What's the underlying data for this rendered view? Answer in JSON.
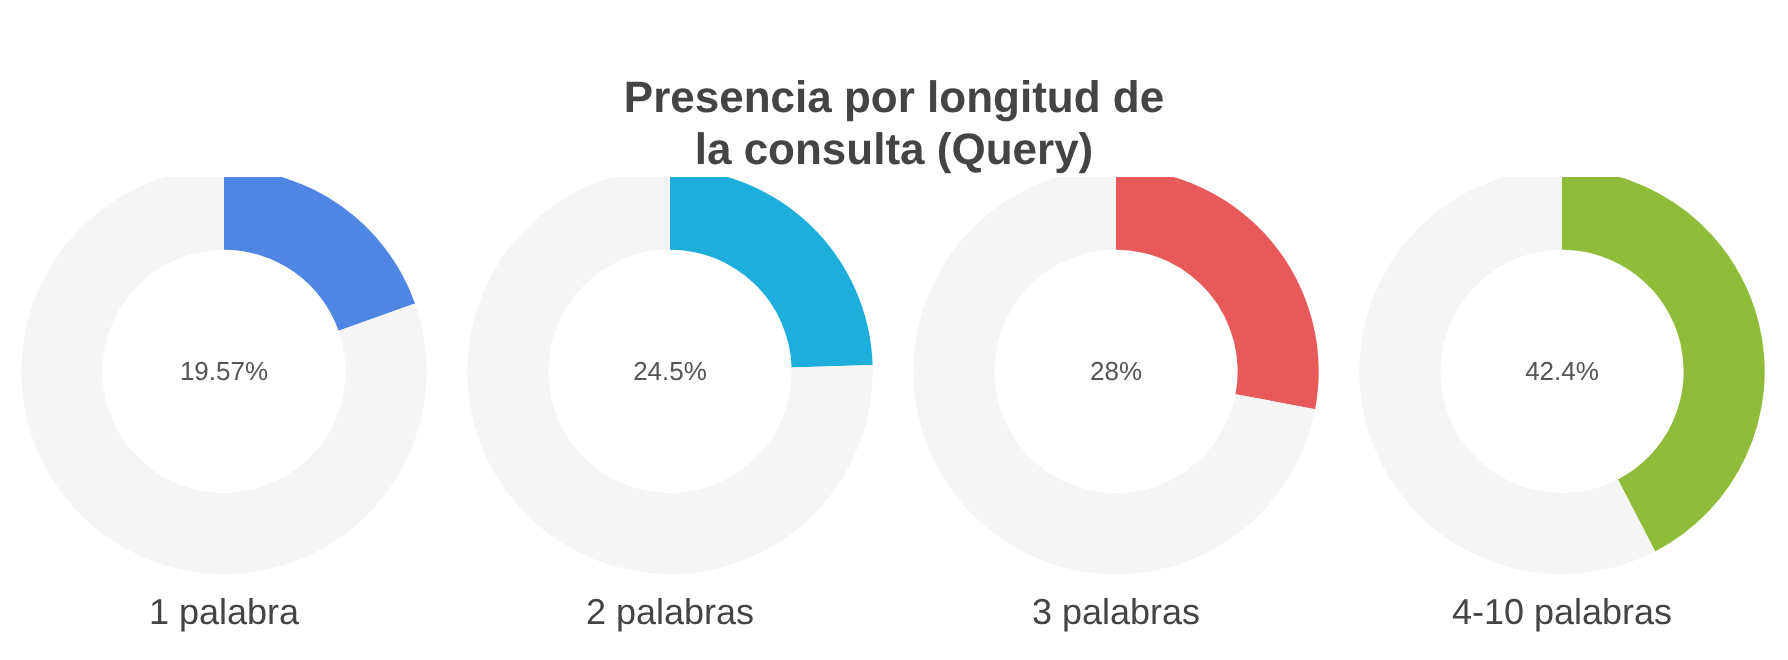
{
  "chart_data": [
    {
      "type": "other",
      "title": "Presencia por longitud de\nla consulta (Query)"
    },
    {
      "type": "donut",
      "categories": [
        null,
        null
      ],
      "values": [
        19.57,
        80.43
      ],
      "colors": [
        "#4f86e4",
        "#f5f5f5"
      ],
      "value_labels": [
        "19.57%",
        null
      ],
      "xlabel": "1 palabra"
    },
    {
      "type": "donut",
      "categories": [
        null,
        null
      ],
      "values": [
        24.5,
        75.5
      ],
      "colors": [
        "#1eaedb",
        "#f5f5f5"
      ],
      "value_labels": [
        "24.5%",
        null
      ],
      "xlabel": "2 palabras"
    },
    {
      "type": "donut",
      "categories": [
        null,
        null
      ],
      "values": [
        28,
        72
      ],
      "colors": [
        "#e85a5a",
        "#f5f5f5"
      ],
      "value_labels": [
        "28%",
        null
      ],
      "xlabel": "3 palabras"
    },
    {
      "type": "donut",
      "categories": [
        null,
        null
      ],
      "values": [
        42.4,
        57.6
      ],
      "colors": [
        "#8fbd3a",
        "#f5f5f5"
      ],
      "value_labels": [
        "42.4%",
        null
      ],
      "xlabel": "4-10 palabras"
    }
  ]
}
